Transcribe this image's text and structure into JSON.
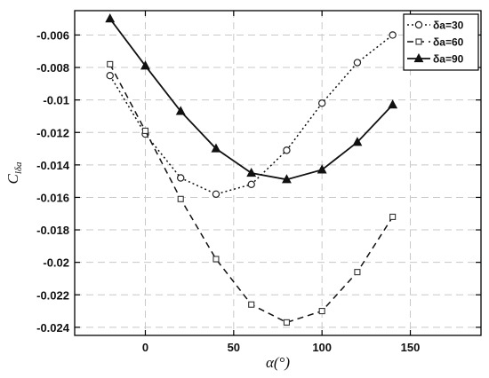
{
  "chart_data": {
    "type": "line",
    "xlabel": "α(°)",
    "ylabel": "C",
    "ylabel_subscript": "lδa",
    "xlim": [
      -40,
      190
    ],
    "ylim": [
      -0.0245,
      -0.0045
    ],
    "xticks": [
      0,
      50,
      100,
      150
    ],
    "yticks": [
      -0.024,
      -0.022,
      -0.02,
      -0.018,
      -0.016,
      -0.014,
      -0.012,
      -0.01,
      -0.008,
      -0.006
    ],
    "xtick_labels": [
      "0",
      "50",
      "100",
      "150"
    ],
    "ytick_labels": [
      "-0.024",
      "-0.022",
      "-0.02",
      "-0.018",
      "-0.016",
      "-0.014",
      "-0.012",
      "-0.01",
      "-0.008",
      "-0.006"
    ],
    "grid": true,
    "legend_position": "top-right",
    "x": [
      -20,
      0,
      20,
      40,
      60,
      80,
      100,
      120,
      140
    ],
    "series": [
      {
        "name": "δa=30",
        "line_style": "dotted",
        "marker": "circle",
        "values": [
          -0.0085,
          -0.0121,
          -0.0148,
          -0.0158,
          -0.0152,
          -0.0131,
          -0.0102,
          -0.0077,
          -0.006
        ]
      },
      {
        "name": "δa=60",
        "line_style": "dashed",
        "marker": "square",
        "values": [
          -0.0078,
          -0.0119,
          -0.0161,
          -0.0198,
          -0.0226,
          -0.0237,
          -0.023,
          -0.0206,
          -0.0172
        ]
      },
      {
        "name": "δa=90",
        "line_style": "solid",
        "marker": "triangle",
        "values": [
          -0.005,
          -0.0079,
          -0.0107,
          -0.013,
          -0.0145,
          -0.0149,
          -0.0143,
          -0.0126,
          -0.0103
        ]
      }
    ]
  }
}
